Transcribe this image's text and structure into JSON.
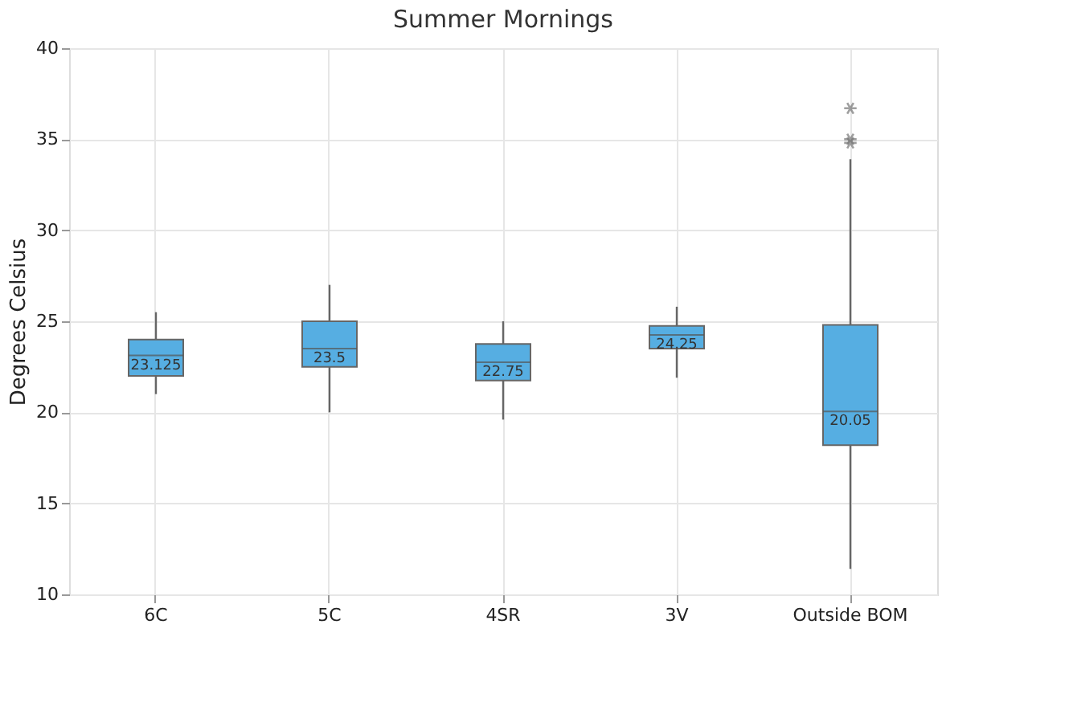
{
  "chart_data": {
    "type": "box",
    "title": "Summer Mornings",
    "ylabel": "Degrees Celsius",
    "categories": [
      "6C",
      "5C",
      "4SR",
      "3V",
      "Outside BOM"
    ],
    "boxes": [
      {
        "low": 21.0,
        "q1": 22.0,
        "median": 23.125,
        "q3": 24.0,
        "high": 25.5
      },
      {
        "low": 20.0,
        "q1": 22.5,
        "median": 23.5,
        "q3": 25.0,
        "high": 27.0
      },
      {
        "low": 19.6,
        "q1": 21.75,
        "median": 22.75,
        "q3": 23.75,
        "high": 25.0
      },
      {
        "low": 21.9,
        "q1": 23.5,
        "median": 24.25,
        "q3": 24.75,
        "high": 25.8
      },
      {
        "low": 11.4,
        "q1": 18.2,
        "median": 20.05,
        "q3": 24.8,
        "high": 33.9,
        "outliers": [
          36.7,
          35.0,
          34.8
        ]
      }
    ],
    "annotations": [
      {
        "text": "23.125",
        "x": "6C",
        "y": 23.125
      },
      {
        "text": "23.5",
        "x": "5C",
        "y": 23.5
      },
      {
        "text": "22.75",
        "x": "4SR",
        "y": 22.75
      },
      {
        "text": "24.25",
        "x": "3V",
        "y": 24.25
      },
      {
        "text": "20.05",
        "x": "Outside BOM",
        "y": 20.05
      }
    ],
    "color": "#56aee2",
    "ylim": [
      10,
      40
    ],
    "yticks": [
      10,
      15,
      20,
      25,
      30,
      35,
      40
    ],
    "grid": true
  }
}
